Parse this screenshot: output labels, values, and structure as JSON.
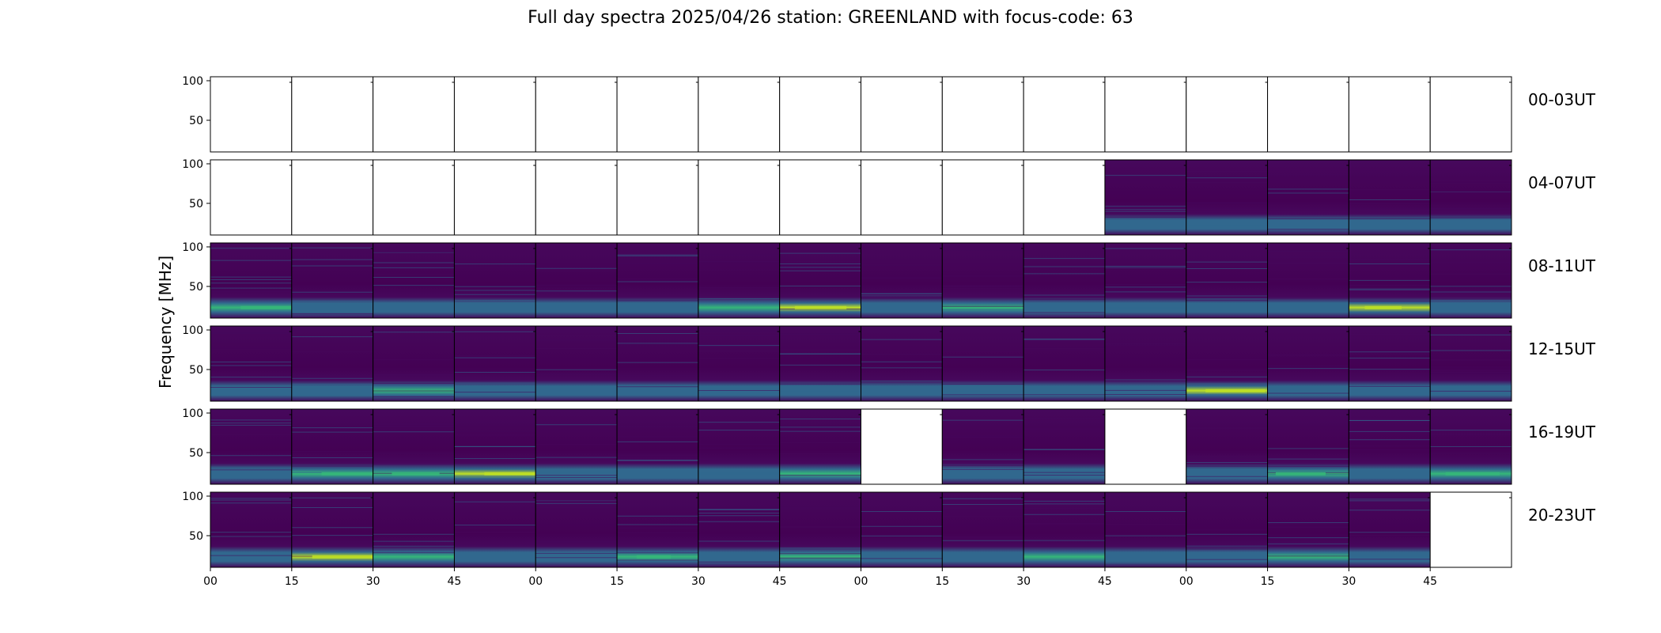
{
  "title": "Full day spectra 2025/04/26 station: GREENLAND with focus-code: 63",
  "chart_data": {
    "type": "heatmap",
    "title": "Full day spectra 2025/04/26 station: GREENLAND with focus-code: 63",
    "ylabel": "Frequency [MHz]",
    "xlabel": "",
    "y_ticks": [
      "100",
      "50"
    ],
    "ylim": [
      10,
      105
    ],
    "x_ticks": [
      "00",
      "15",
      "30",
      "45",
      "00",
      "15",
      "30",
      "45",
      "00",
      "15",
      "30",
      "45",
      "00",
      "15",
      "30",
      "45"
    ],
    "panels_per_row": 16,
    "panel_minutes": 15,
    "colormap": "viridis",
    "colors": {
      "background": "#440154",
      "base": "#46085c",
      "mid": "#31688e",
      "band": "#35b779",
      "bright": "#bddf26"
    },
    "rows": [
      {
        "label": "00-03UT",
        "available": [
          0,
          0,
          0,
          0,
          0,
          0,
          0,
          0,
          0,
          0,
          0,
          0,
          0,
          0,
          0,
          0
        ],
        "band_intensity": [
          0,
          0,
          0,
          0,
          0,
          0,
          0,
          0,
          0,
          0,
          0,
          0,
          0,
          0,
          0,
          0
        ]
      },
      {
        "label": "04-07UT",
        "available": [
          0,
          0,
          0,
          0,
          0,
          0,
          0,
          0,
          0,
          0,
          0,
          1,
          1,
          1,
          1,
          1
        ],
        "band_intensity": [
          0,
          0,
          0,
          0,
          0,
          0,
          0,
          0,
          0,
          0,
          0,
          0.35,
          0.45,
          0.45,
          0.45,
          0.45
        ]
      },
      {
        "label": "08-11UT",
        "available": [
          1,
          1,
          1,
          1,
          1,
          1,
          1,
          1,
          1,
          1,
          1,
          1,
          1,
          1,
          1,
          1
        ],
        "band_intensity": [
          0.6,
          0.4,
          0.45,
          0.45,
          0.4,
          0.35,
          0.55,
          0.75,
          0.4,
          0.5,
          0.45,
          0.35,
          0.45,
          0.45,
          0.85,
          0.4
        ]
      },
      {
        "label": "12-15UT",
        "available": [
          1,
          1,
          1,
          1,
          1,
          1,
          1,
          1,
          1,
          1,
          1,
          1,
          1,
          1,
          1,
          1
        ],
        "band_intensity": [
          0.35,
          0.3,
          0.55,
          0.3,
          0.3,
          0.35,
          0.35,
          0.35,
          0.3,
          0.35,
          0.3,
          0.35,
          0.8,
          0.45,
          0.35,
          0.4
        ]
      },
      {
        "label": "16-19UT",
        "available": [
          1,
          1,
          1,
          1,
          1,
          1,
          1,
          1,
          0,
          1,
          1,
          0,
          1,
          1,
          1,
          1
        ],
        "band_intensity": [
          0.45,
          0.6,
          0.6,
          0.8,
          0.45,
          0.4,
          0.4,
          0.5,
          0,
          0.45,
          0.45,
          0,
          0.45,
          0.6,
          0.45,
          0.65
        ]
      },
      {
        "label": "20-23UT",
        "available": [
          1,
          1,
          1,
          1,
          1,
          1,
          1,
          1,
          1,
          1,
          1,
          1,
          1,
          1,
          1,
          0
        ],
        "band_intensity": [
          0.4,
          0.8,
          0.5,
          0.4,
          0.4,
          0.6,
          0.35,
          0.5,
          0.4,
          0.45,
          0.5,
          0.35,
          0.4,
          0.5,
          0.45,
          0
        ]
      }
    ]
  }
}
